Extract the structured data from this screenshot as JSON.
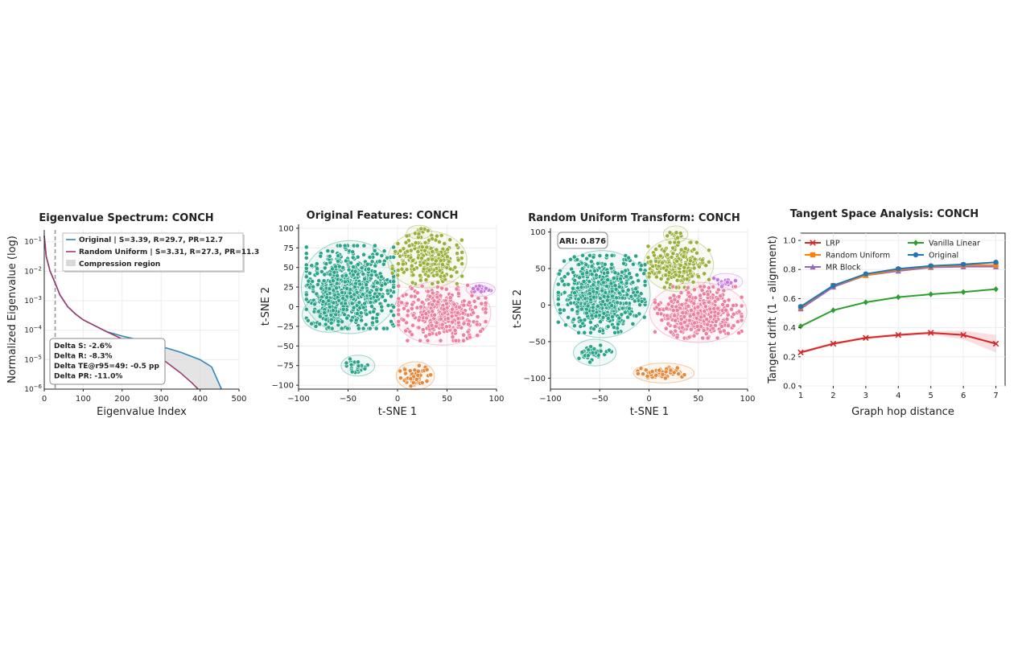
{
  "colors": {
    "original": "#3288bd",
    "random_uniform": "#9e3a6e",
    "lrp": "#d62728",
    "random_uniform_tangent": "#ff7f0e",
    "mr_block": "#9467bd",
    "vanilla_linear": "#2ca02c",
    "original_tangent": "#1f77b4",
    "cluster_teal": "#2aa58a",
    "cluster_olive": "#9ab03a",
    "cluster_pink": "#ee7f9e",
    "cluster_orange": "#e8893a",
    "cluster_violet": "#c978e0",
    "cluster_blue": "#6a8fe0"
  },
  "chart_data": [
    {
      "type": "line",
      "title": "Eigenvalue Spectrum: CONCH",
      "xlabel": "Eigenvalue Index",
      "ylabel": "Normalized Eigenvalue (log)",
      "xlim": [
        0,
        500
      ],
      "ylim_log": [
        -6,
        -0.6
      ],
      "xticks": [
        "0",
        "100",
        "200",
        "300",
        "400",
        "500"
      ],
      "yticks": [
        {
          "base": "10",
          "exp": "−1",
          "value": -1
        },
        {
          "base": "10",
          "exp": "−2",
          "value": -2
        },
        {
          "base": "10",
          "exp": "−3",
          "value": -3
        },
        {
          "base": "10",
          "exp": "−4",
          "value": -4
        },
        {
          "base": "10",
          "exp": "−5",
          "value": -5
        },
        {
          "base": "10",
          "exp": "−6",
          "value": -6
        }
      ],
      "vline_x": 28,
      "series": [
        {
          "name": "Original | S=3.39, R=29.7, PR=12.7",
          "color": "#3288bd",
          "x": [
            0,
            5,
            15,
            28,
            40,
            60,
            80,
            100,
            130,
            160,
            200,
            250,
            300,
            350,
            400,
            430,
            455
          ],
          "log10_y": [
            -0.8,
            -1.5,
            -2.0,
            -2.4,
            -2.8,
            -3.2,
            -3.45,
            -3.65,
            -3.85,
            -4.05,
            -4.2,
            -4.35,
            -4.55,
            -4.75,
            -5.0,
            -5.25,
            -6.0
          ]
        },
        {
          "name": "Random Uniform | S=3.31, R=27.3, PR=11.3",
          "color": "#9e3a6e",
          "x": [
            0,
            5,
            15,
            28,
            40,
            60,
            80,
            100,
            130,
            160,
            200,
            250,
            300,
            350,
            380,
            395
          ],
          "log10_y": [
            -0.8,
            -1.5,
            -2.0,
            -2.4,
            -2.8,
            -3.2,
            -3.45,
            -3.65,
            -3.85,
            -4.05,
            -4.3,
            -4.6,
            -4.95,
            -5.45,
            -5.8,
            -6.0
          ]
        }
      ],
      "legend": {
        "entries": [
          "Original | S=3.39, R=29.7, PR=12.7",
          "Random Uniform | S=3.31, R=27.3, PR=11.3",
          "Compression region"
        ]
      },
      "annotation": [
        "Delta S: -2.6%",
        "Delta R: -8.3%",
        "Delta TE@r95=49: -0.5 pp",
        "Delta PR: -11.0%"
      ]
    },
    {
      "type": "scatter",
      "title": "Original Features: CONCH",
      "xlabel": "t-SNE 1",
      "ylabel": "t-SNE 2",
      "xlim": [
        -100,
        100
      ],
      "ylim": [
        -105,
        105
      ],
      "xticks": [
        "−100",
        "−50",
        "0",
        "50",
        "100"
      ],
      "yticks": [
        "100",
        "75",
        "50",
        "25",
        "0",
        "−25",
        "−50",
        "−75",
        "−100"
      ],
      "clusters": [
        {
          "name": "teal",
          "cx": -48,
          "cy": 25,
          "sx": 20,
          "sy": 24,
          "n": 700,
          "color": "#2aa58a"
        },
        {
          "name": "teal-tail",
          "cx": -70,
          "cy": -10,
          "sx": 10,
          "sy": 8,
          "n": 60,
          "color": "#2aa58a"
        },
        {
          "name": "teal-bottom",
          "cx": -40,
          "cy": -75,
          "sx": 6,
          "sy": 4,
          "n": 30,
          "color": "#2aa58a"
        },
        {
          "name": "olive",
          "cx": 30,
          "cy": 60,
          "sx": 16,
          "sy": 14,
          "n": 260,
          "color": "#9ab03a"
        },
        {
          "name": "pink",
          "cx": 45,
          "cy": -8,
          "sx": 20,
          "sy": 16,
          "n": 380,
          "color": "#ee7f9e"
        },
        {
          "name": "orange",
          "cx": 18,
          "cy": -88,
          "sx": 7,
          "sy": 6,
          "n": 60,
          "color": "#e8893a"
        },
        {
          "name": "violet",
          "cx": 84,
          "cy": 22,
          "sx": 5,
          "sy": 2,
          "n": 18,
          "color": "#c978e0"
        },
        {
          "name": "olive-top",
          "cx": 22,
          "cy": 95,
          "sx": 4,
          "sy": 2,
          "n": 10,
          "color": "#9ab03a"
        }
      ]
    },
    {
      "type": "scatter",
      "title": "Random Uniform Transform: CONCH",
      "xlabel": "t-SNE 1",
      "ylabel": "t-SNE 2",
      "xlim": [
        -100,
        100
      ],
      "ylim": [
        -115,
        105
      ],
      "xticks": [
        "−100",
        "−50",
        "0",
        "50",
        "100"
      ],
      "yticks": [
        "100",
        "50",
        "0",
        "−50",
        "−100"
      ],
      "ari_label": "ARI: 0.876",
      "clusters": [
        {
          "name": "teal",
          "cx": -48,
          "cy": 15,
          "sx": 20,
          "sy": 24,
          "n": 720,
          "color": "#2aa58a"
        },
        {
          "name": "teal-bottom",
          "cx": -55,
          "cy": -65,
          "sx": 8,
          "sy": 6,
          "n": 40,
          "color": "#2aa58a"
        },
        {
          "name": "olive",
          "cx": 30,
          "cy": 55,
          "sx": 14,
          "sy": 14,
          "n": 250,
          "color": "#9ab03a"
        },
        {
          "name": "pink",
          "cx": 50,
          "cy": -10,
          "sx": 20,
          "sy": 16,
          "n": 450,
          "color": "#ee7f9e"
        },
        {
          "name": "orange",
          "cx": 15,
          "cy": -93,
          "sx": 12,
          "sy": 4,
          "n": 60,
          "color": "#e8893a"
        },
        {
          "name": "violet",
          "cx": 78,
          "cy": 32,
          "sx": 6,
          "sy": 3,
          "n": 20,
          "color": "#c978e0"
        },
        {
          "name": "olive-top",
          "cx": 27,
          "cy": 97,
          "sx": 4,
          "sy": 3,
          "n": 12,
          "color": "#9ab03a"
        }
      ]
    },
    {
      "type": "line",
      "title": "Tangent Space Analysis: CONCH",
      "xlabel": "Graph hop distance",
      "ylabel": "Tangent drift (1 - alignment)",
      "xlim": [
        1,
        7
      ],
      "ylim": [
        0.0,
        1.05
      ],
      "xticks": [
        "1",
        "2",
        "3",
        "4",
        "5",
        "6",
        "7"
      ],
      "yticks": [
        "0.0",
        "0.2",
        "0.4",
        "0.6",
        "0.8",
        "1.0"
      ],
      "x": [
        1,
        2,
        3,
        4,
        5,
        6,
        7
      ],
      "series": [
        {
          "name": "LRP",
          "marker": "x",
          "color": "#d62728",
          "values": [
            0.23,
            0.29,
            0.33,
            0.35,
            0.365,
            0.35,
            0.29
          ]
        },
        {
          "name": "Random Uniform",
          "marker": "s",
          "color": "#ff7f0e",
          "values": [
            0.54,
            0.69,
            0.76,
            0.8,
            0.82,
            0.83,
            0.83
          ]
        },
        {
          "name": "MR Block",
          "marker": "^",
          "color": "#9467bd",
          "values": [
            0.53,
            0.68,
            0.76,
            0.79,
            0.815,
            0.82,
            0.82
          ]
        },
        {
          "name": "Vanilla Linear",
          "marker": "D",
          "color": "#2ca02c",
          "values": [
            0.41,
            0.52,
            0.575,
            0.61,
            0.63,
            0.645,
            0.665
          ]
        },
        {
          "name": "Original",
          "marker": "o",
          "color": "#1f77b4",
          "values": [
            0.545,
            0.69,
            0.77,
            0.805,
            0.825,
            0.835,
            0.85
          ]
        }
      ],
      "legend": {
        "columns": [
          [
            "LRP",
            "Random Uniform",
            "MR Block"
          ],
          [
            "Vanilla Linear",
            "Original"
          ]
        ]
      }
    }
  ]
}
